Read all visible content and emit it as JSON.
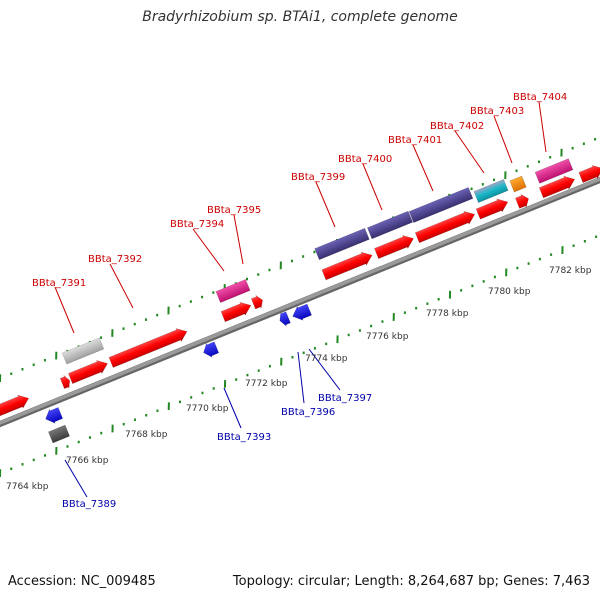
{
  "title": "Bradyrhizobium sp. BTAi1, complete genome",
  "footer": {
    "accession": "Accession: NC_009485",
    "topology": "Topology: circular; Length: 8,264,687 bp; Genes: 7,463"
  },
  "scale_labels": [
    "7764 kbp",
    "7766 kbp",
    "7768 kbp",
    "7770 kbp",
    "7772 kbp",
    "7774 kbp",
    "7776 kbp",
    "7778 kbp",
    "7780 kbp",
    "7782 kbp"
  ],
  "forward_gene_labels": [
    "BBta_7391",
    "BBta_7392",
    "BBta_7394",
    "BBta_7395",
    "BBta_7399",
    "BBta_7400",
    "BBta_7401",
    "BBta_7402",
    "BBta_7403",
    "BBta_7404"
  ],
  "reverse_gene_labels": [
    "BBta_7389",
    "BBta_7393",
    "BBta_7396",
    "BBta_7397"
  ],
  "colors": {
    "forward_label": "#cc0000",
    "reverse_label": "#0000aa",
    "cds_red": "#ff0000",
    "cds_blue": "#0000ee",
    "rna_purple": "#4c4393",
    "pink": "#e8208f",
    "orange": "#ff8a00",
    "light_gray": "#c0c0c0",
    "dark_gray": "#555555",
    "teal": "#1ab8c8",
    "backbone": "#8c8c8c",
    "ticks": "#228822"
  }
}
